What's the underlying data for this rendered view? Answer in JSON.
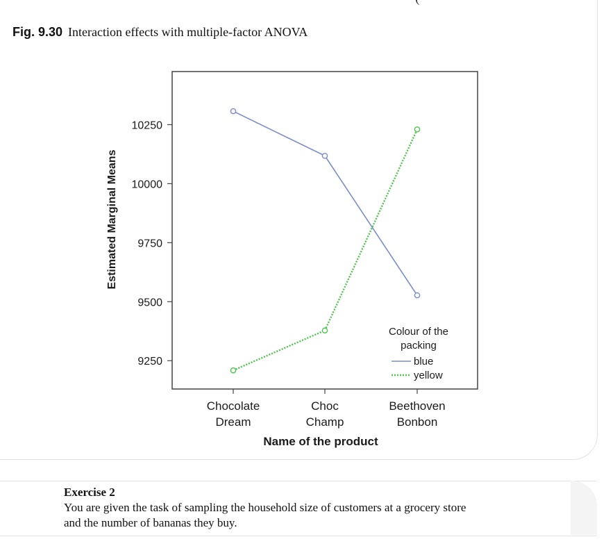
{
  "page": {
    "top_fragment": "(",
    "figure_caption": {
      "label": "Fig. 9.30",
      "text": "Interaction effects with multiple-factor ANOVA"
    },
    "exercise": {
      "title": "Exercise 2",
      "lines": [
        "You are given the task of sampling the household size of customers at a grocery store",
        "and the number of bananas they buy."
      ]
    }
  },
  "chart_data": {
    "type": "line",
    "title": "",
    "xlabel": "Name of the product",
    "ylabel": "Estimated Marginal Means",
    "categories": [
      "Chocolate Dream",
      "Choc Champ",
      "Beethoven Bonbon"
    ],
    "category_lines": [
      [
        "Chocolate",
        "Dream"
      ],
      [
        "Choc",
        "Champ"
      ],
      [
        "Beethoven",
        "Bonbon"
      ]
    ],
    "yticks": [
      10250,
      10000,
      9750,
      9500,
      9250
    ],
    "ylim": [
      9130,
      10475
    ],
    "legend": {
      "title_lines": [
        "Colour of the",
        "packing"
      ],
      "position": "bottom-right"
    },
    "series": [
      {
        "name": "blue",
        "color": "#7b8bd0",
        "dash": "",
        "values": [
          10307,
          10118,
          9527
        ]
      },
      {
        "name": "yellow",
        "color": "#4bc64b",
        "dash": "2 2",
        "values": [
          9209,
          9378,
          10230
        ]
      }
    ]
  }
}
